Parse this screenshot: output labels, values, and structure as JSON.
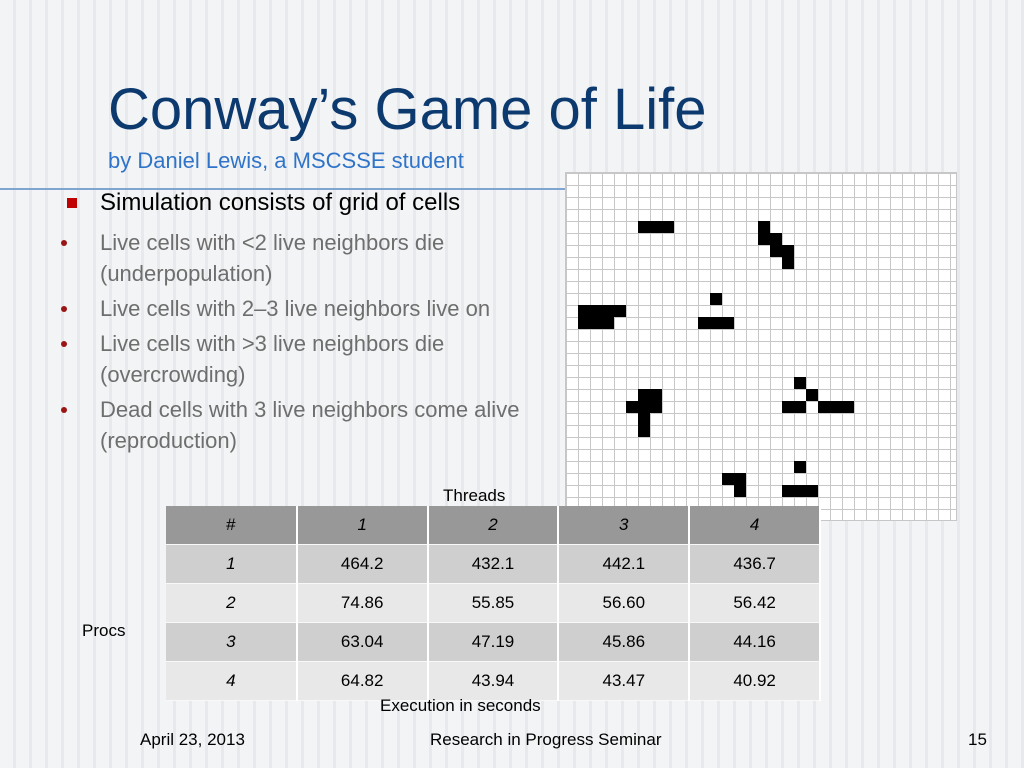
{
  "slide": {
    "title": "Conway’s Game of Life",
    "subtitle": "by Daniel Lewis, a MSCSSE student",
    "bullets": [
      {
        "text": "Simulation consists of grid of cells",
        "level": 1
      },
      {
        "text": "Live cells with <2 live neighbors die (underpopulation)",
        "level": 2
      },
      {
        "text": "Live cells with 2–3 live neighbors live on",
        "level": 2
      },
      {
        "text": "Live cells with >3 live neighbors die (overcrowding)",
        "level": 2
      },
      {
        "text": "Dead cells with 3 live neighbors come alive (reproduction)",
        "level": 2
      }
    ]
  },
  "grid": {
    "cols": 32,
    "rows": 29,
    "live_cells": [
      [
        6,
        4
      ],
      [
        7,
        4
      ],
      [
        8,
        4
      ],
      [
        16,
        4
      ],
      [
        16,
        5
      ],
      [
        17,
        5
      ],
      [
        18,
        6
      ],
      [
        17,
        6
      ],
      [
        18,
        7
      ],
      [
        12,
        10
      ],
      [
        1,
        11
      ],
      [
        2,
        11
      ],
      [
        3,
        11
      ],
      [
        4,
        11
      ],
      [
        1,
        12
      ],
      [
        2,
        12
      ],
      [
        3,
        12
      ],
      [
        11,
        12
      ],
      [
        12,
        12
      ],
      [
        13,
        12
      ],
      [
        19,
        17
      ],
      [
        6,
        18
      ],
      [
        7,
        18
      ],
      [
        20,
        18
      ],
      [
        5,
        19
      ],
      [
        6,
        19
      ],
      [
        7,
        19
      ],
      [
        18,
        19
      ],
      [
        19,
        19
      ],
      [
        21,
        19
      ],
      [
        22,
        19
      ],
      [
        23,
        19
      ],
      [
        6,
        20
      ],
      [
        6,
        21
      ],
      [
        19,
        24
      ],
      [
        13,
        25
      ],
      [
        14,
        25
      ],
      [
        14,
        26
      ],
      [
        18,
        26
      ],
      [
        19,
        26
      ],
      [
        20,
        26
      ]
    ]
  },
  "table": {
    "threads_label": "Threads",
    "procs_label": "Procs",
    "footer_label": "Execution in seconds",
    "header": [
      "#",
      "1",
      "2",
      "3",
      "4"
    ],
    "rows": [
      [
        "1",
        "464.2",
        "432.1",
        "442.1",
        "436.7"
      ],
      [
        "2",
        "74.86",
        "55.85",
        "56.60",
        "56.42"
      ],
      [
        "3",
        "63.04",
        "47.19",
        "45.86",
        "44.16"
      ],
      [
        "4",
        "64.82",
        "43.94",
        "43.47",
        "40.92"
      ]
    ]
  },
  "footer": {
    "date": "April 23, 2013",
    "event": "Research in Progress Seminar",
    "page": "15"
  },
  "colors": {
    "title": "#0d3a6e",
    "subtitle": "#2f74c9",
    "main_bullet": "#c00000",
    "sub_bullet": "#9b1515"
  }
}
